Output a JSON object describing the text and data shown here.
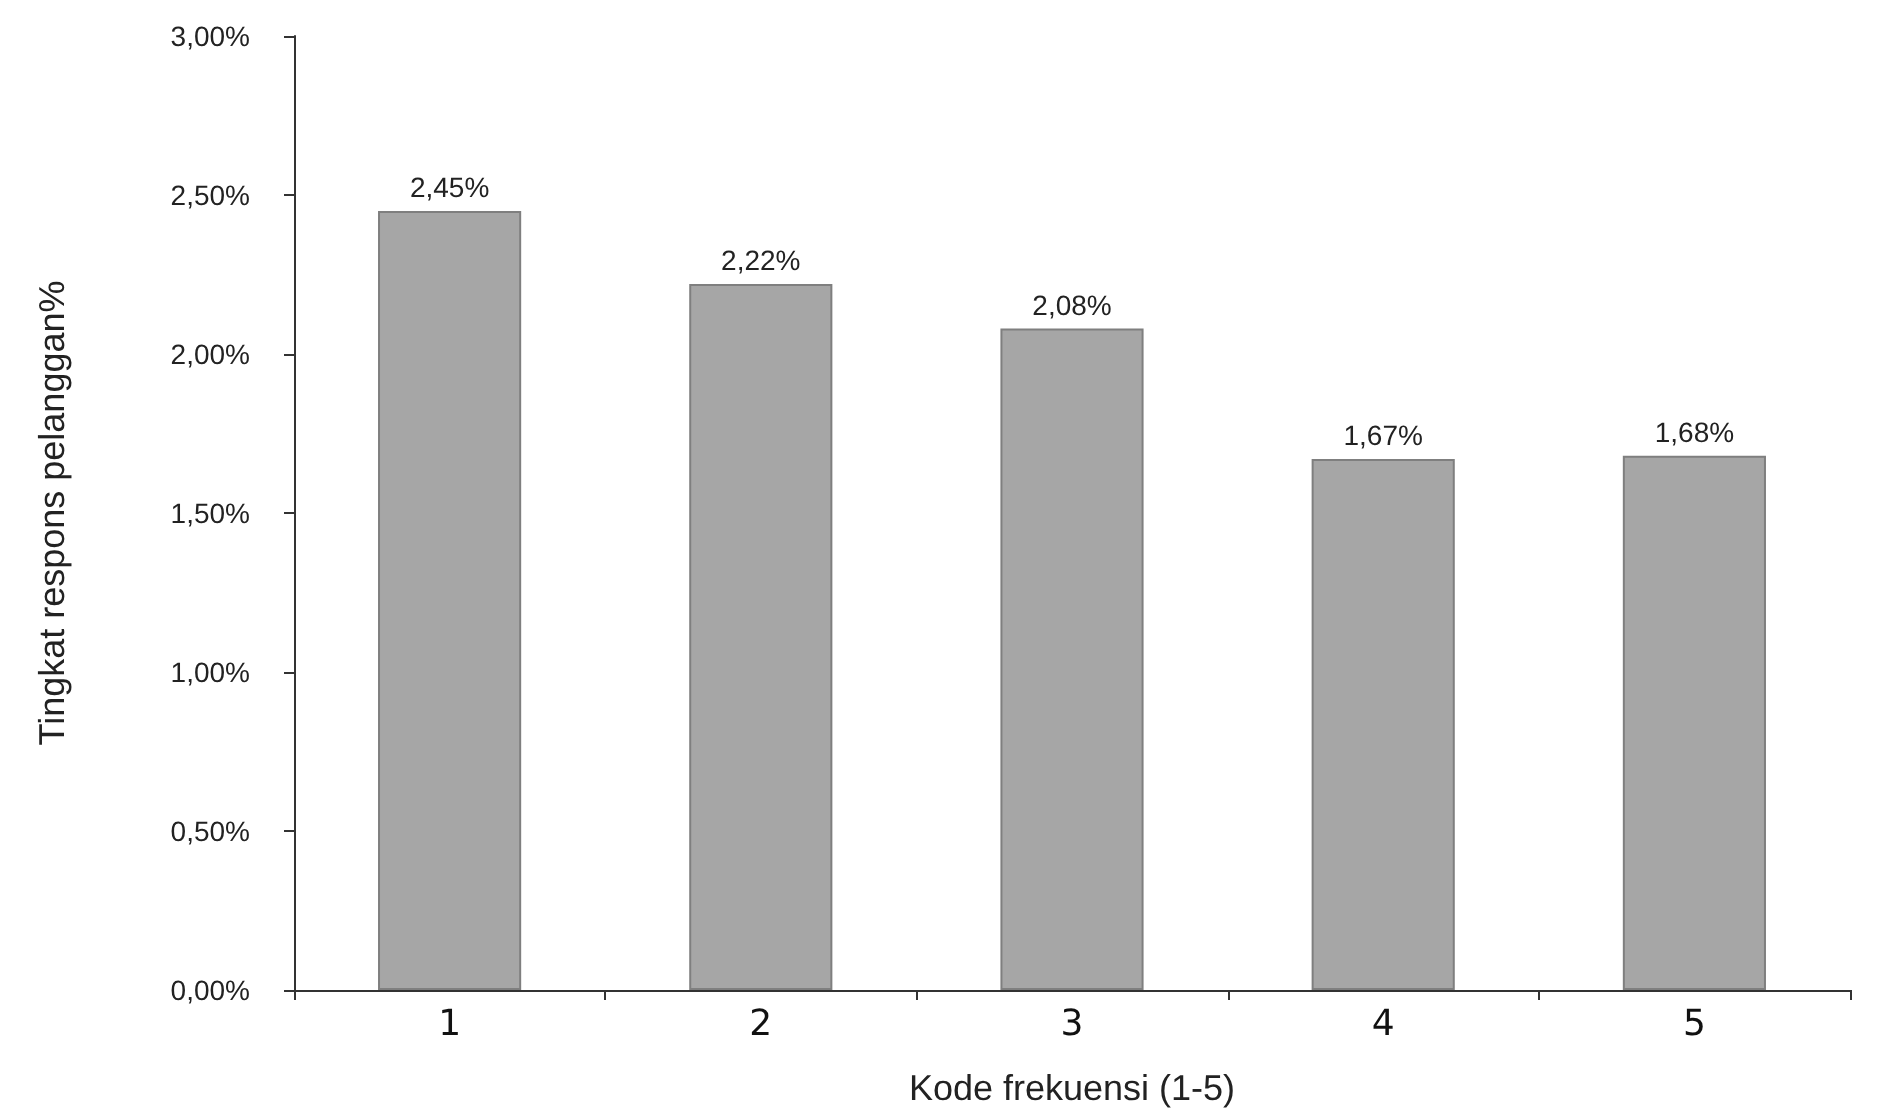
{
  "chart_data": {
    "type": "bar",
    "xlabel": "Kode frekuensi (1-5)",
    "ylabel": "Tingkat respons pelanggan%",
    "categories": [
      "1",
      "2",
      "3",
      "4",
      "5"
    ],
    "values": [
      2.45,
      2.22,
      2.08,
      1.67,
      1.68
    ],
    "value_labels": [
      "2,45%",
      "2,22%",
      "2,08%",
      "1,67%",
      "1,68%"
    ],
    "color": "#a6a6a6",
    "ylim": [
      0,
      3
    ],
    "yticks": [
      {
        "value": 0,
        "label": "0,00%"
      },
      {
        "value": 0.5,
        "label": "0,50%"
      },
      {
        "value": 1,
        "label": "1,00%"
      },
      {
        "value": 1.5,
        "label": "1,50%"
      },
      {
        "value": 2,
        "label": "2,00%"
      },
      {
        "value": 2.5,
        "label": "2,50%"
      },
      {
        "value": 3,
        "label": "3,00%"
      }
    ],
    "grid": false
  }
}
